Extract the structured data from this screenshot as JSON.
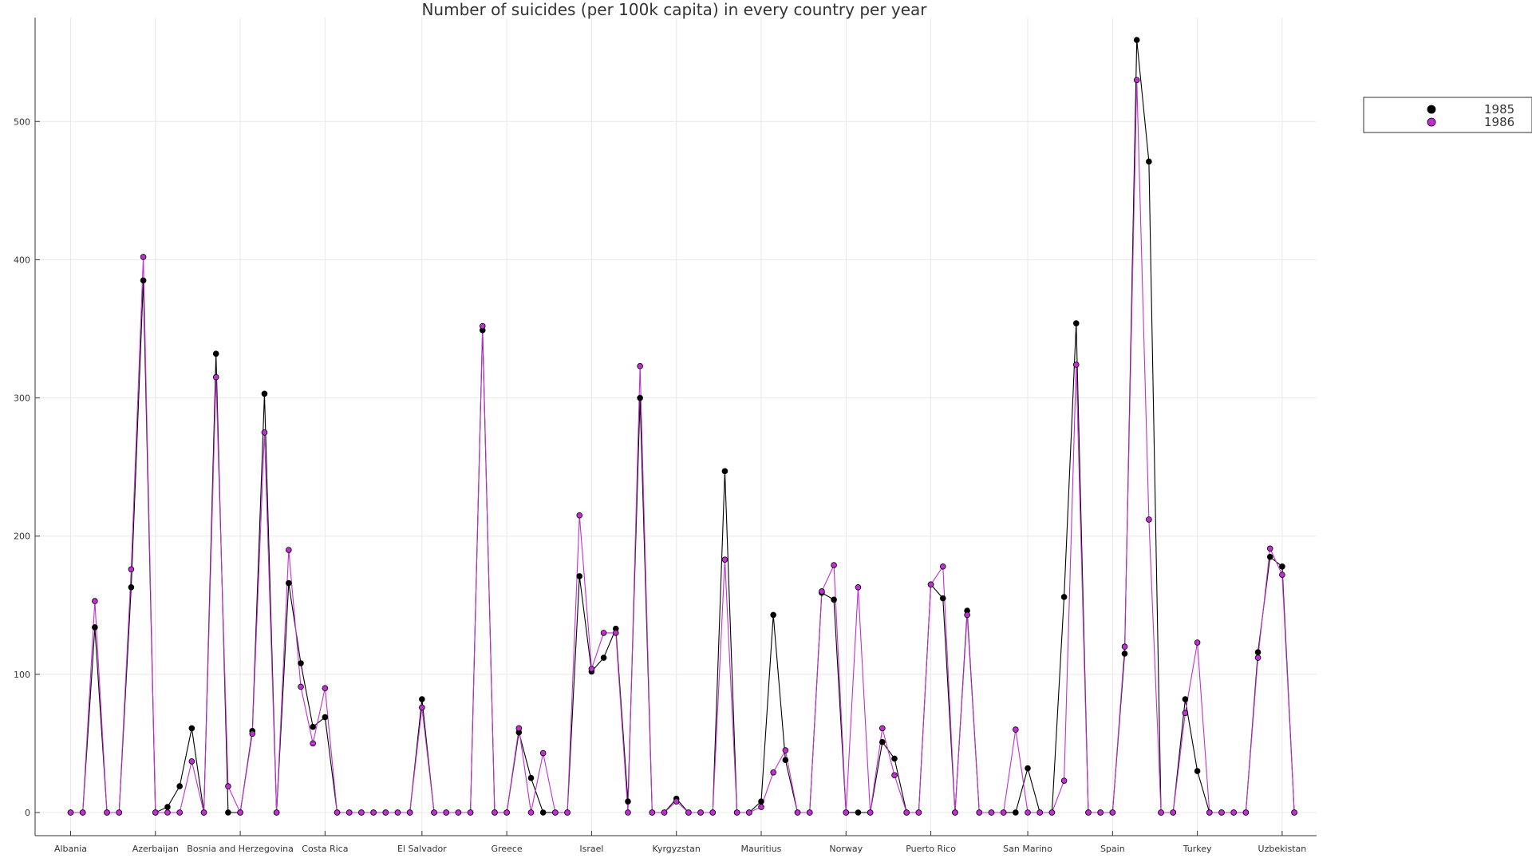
{
  "chart_data": {
    "type": "line",
    "title": "Number of suicides (per 100k capita) in every country per year",
    "xlabel": "",
    "ylabel": "",
    "ylim": [
      -17,
      575
    ],
    "yticks": [
      0,
      100,
      200,
      300,
      400,
      500
    ],
    "grid": true,
    "legend": "right",
    "colors": {
      "1985": "#000000",
      "1986": "#c12fd3"
    },
    "xticks": [
      {
        "label": "Albania",
        "index": 0
      },
      {
        "label": "Azerbaijan",
        "index": 7
      },
      {
        "label": "Bosnia and Herzegovina",
        "index": 14
      },
      {
        "label": "Costa Rica",
        "index": 21
      },
      {
        "label": "El Salvador",
        "index": 29
      },
      {
        "label": "Greece",
        "index": 36
      },
      {
        "label": "Israel",
        "index": 43
      },
      {
        "label": "Kyrgyzstan",
        "index": 50
      },
      {
        "label": "Mauritius",
        "index": 57
      },
      {
        "label": "Norway",
        "index": 64
      },
      {
        "label": "Puerto Rico",
        "index": 71
      },
      {
        "label": "San Marino",
        "index": 79
      },
      {
        "label": "Spain",
        "index": 86
      },
      {
        "label": "Turkey",
        "index": 93
      },
      {
        "label": "Uzbekistan",
        "index": 100
      }
    ],
    "series": [
      {
        "name": "1985",
        "values": [
          0,
          0,
          134,
          0,
          0,
          163,
          385,
          0,
          4,
          19,
          61,
          0,
          332,
          0,
          0,
          59,
          303,
          0,
          166,
          108,
          62,
          69,
          0,
          0,
          0,
          0,
          0,
          0,
          0,
          82,
          0,
          0,
          0,
          0,
          349,
          0,
          0,
          58,
          25,
          0,
          0,
          0,
          171,
          102,
          112,
          133,
          8,
          300,
          0,
          0,
          10,
          0,
          0,
          0,
          247,
          0,
          0,
          8,
          143,
          38,
          0,
          0,
          159,
          154,
          0,
          0,
          0,
          51,
          39,
          0,
          0,
          165,
          155,
          0,
          146,
          0,
          0,
          0,
          0,
          32,
          0,
          0,
          156,
          354,
          0,
          0,
          0,
          115,
          559,
          471,
          0,
          0,
          82,
          30,
          0,
          0,
          0,
          0,
          116,
          185,
          178,
          0
        ]
      },
      {
        "name": "1986",
        "values": [
          0,
          0,
          153,
          0,
          0,
          176,
          402,
          0,
          0,
          0,
          37,
          0,
          315,
          19,
          0,
          57,
          275,
          0,
          190,
          91,
          50,
          90,
          0,
          0,
          0,
          0,
          0,
          0,
          0,
          76,
          0,
          0,
          0,
          0,
          352,
          0,
          0,
          61,
          0,
          43,
          0,
          0,
          215,
          104,
          130,
          130,
          0,
          323,
          0,
          0,
          8,
          0,
          0,
          0,
          183,
          0,
          0,
          4,
          29,
          45,
          0,
          0,
          160,
          179,
          0,
          163,
          0,
          61,
          27,
          0,
          0,
          165,
          178,
          0,
          143,
          0,
          0,
          0,
          60,
          0,
          0,
          0,
          23,
          324,
          0,
          0,
          0,
          120,
          530,
          212,
          0,
          0,
          72,
          123,
          0,
          0,
          0,
          0,
          112,
          191,
          172,
          0
        ]
      }
    ]
  }
}
